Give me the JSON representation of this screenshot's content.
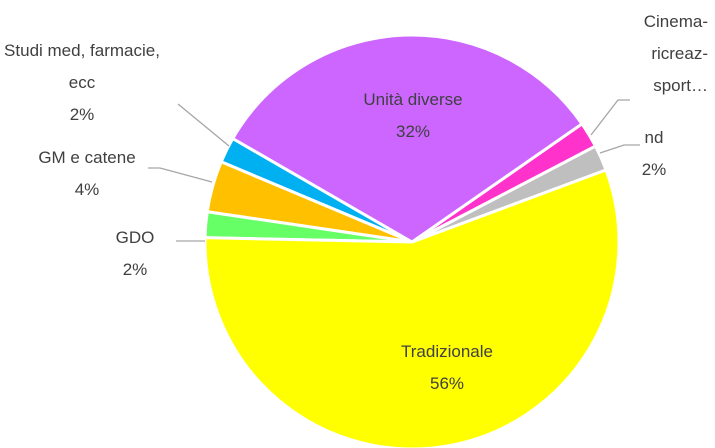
{
  "chart_data": {
    "type": "pie",
    "categories": [
      "Unità diverse",
      "Cinema-ricreaz-sport…",
      "nd",
      "Tradizionale",
      "GDO",
      "GM e catene",
      "Studi med, farmacie, ecc"
    ],
    "values": [
      32,
      2,
      2,
      56,
      2,
      4,
      2
    ],
    "value_labels": [
      "32%",
      null,
      "2%",
      "56%",
      "2%",
      "4%",
      "2%"
    ],
    "colors": [
      "#cc66ff",
      "#ff33cc",
      "#bfbfbf",
      "#ffff00",
      "#66ff66",
      "#ffc000",
      "#00b0f0"
    ]
  }
}
